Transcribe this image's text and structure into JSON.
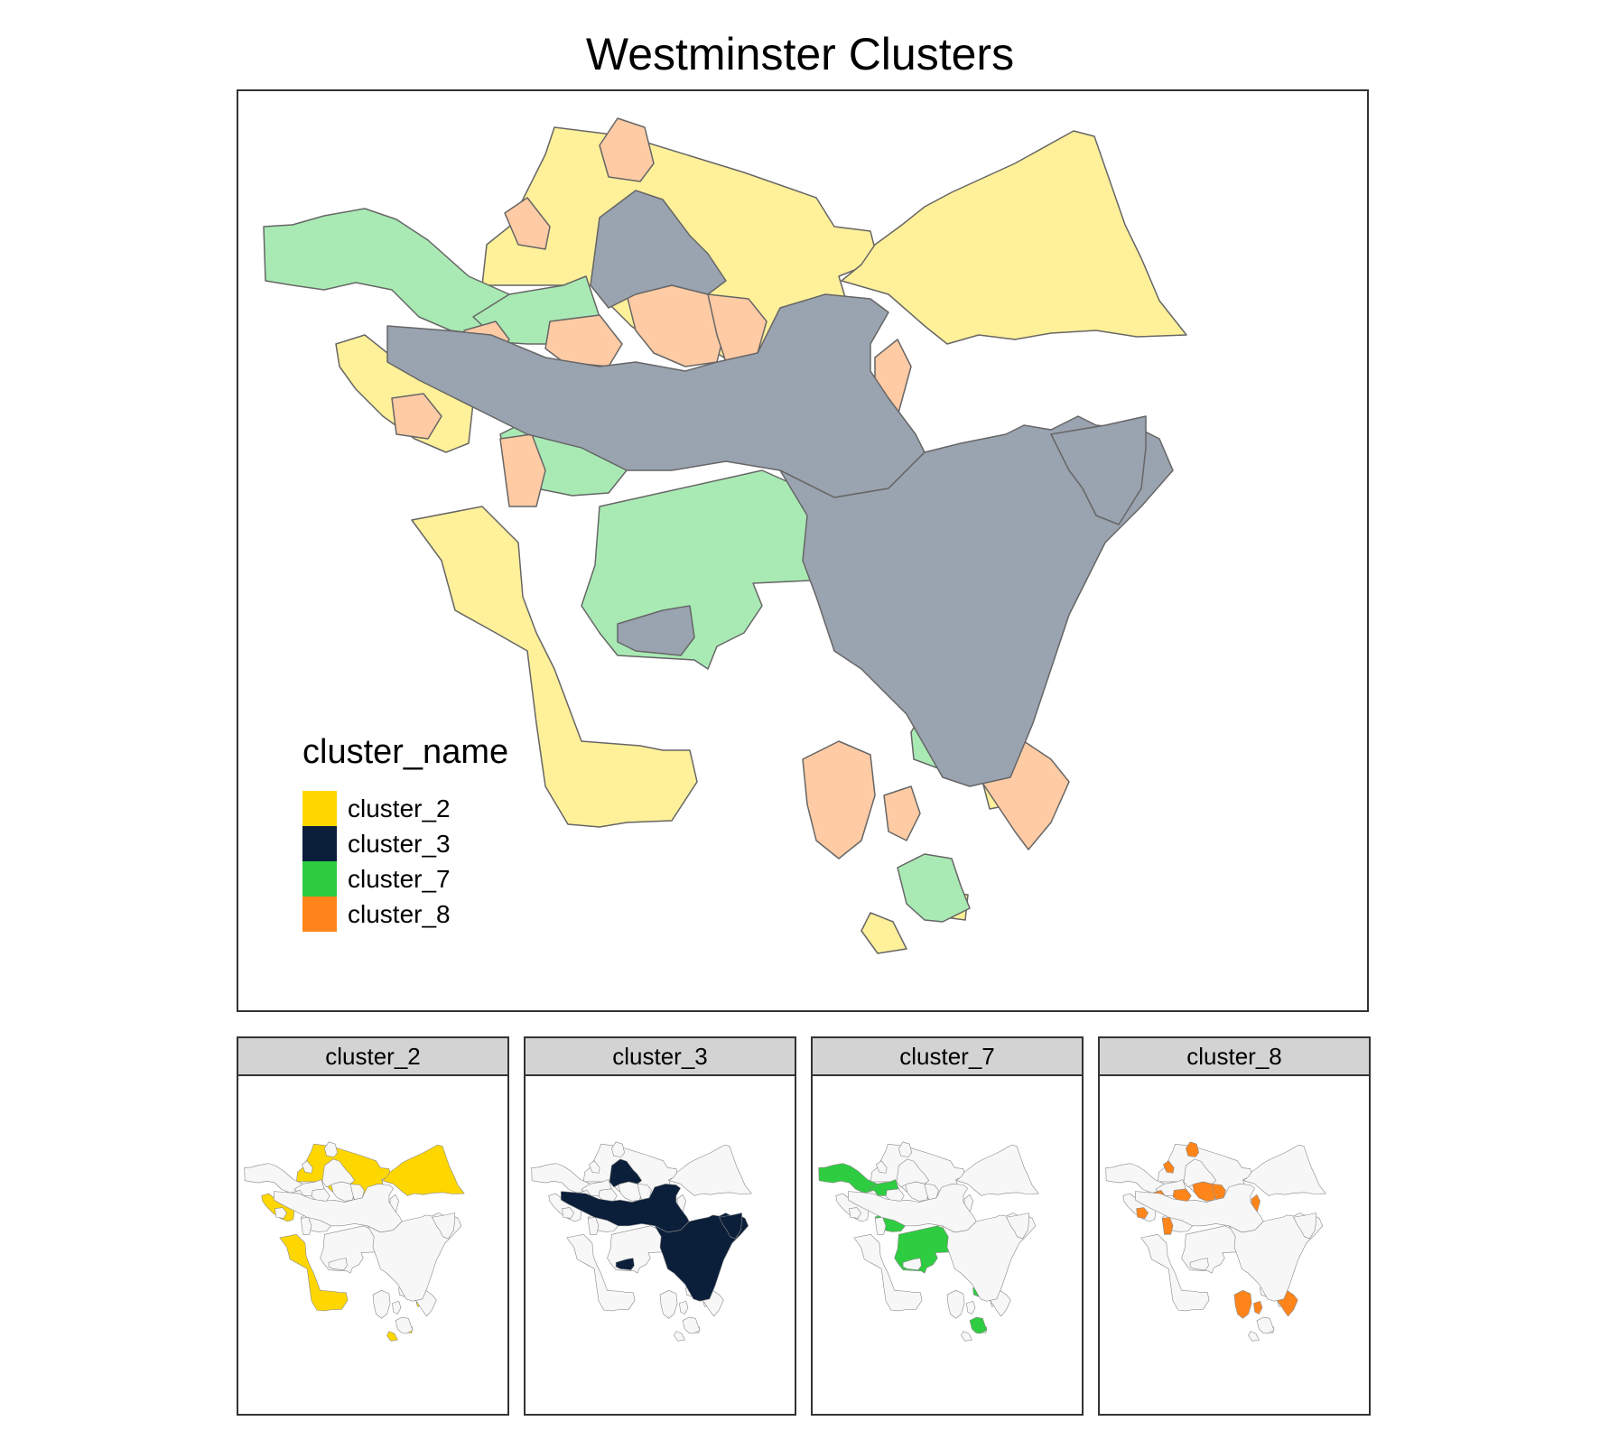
{
  "title": "Westminster Clusters",
  "legend": {
    "title": "cluster_name",
    "items": [
      {
        "label": "cluster_2",
        "color": "#FFD700"
      },
      {
        "label": "cluster_3",
        "color": "#0B1F3A"
      },
      {
        "label": "cluster_7",
        "color": "#2ECC40"
      },
      {
        "label": "cluster_8",
        "color": "#FF851B"
      }
    ]
  },
  "main_map": {
    "fill_opacity": 0.4,
    "region_colors": {
      "cluster_2": "#FFF09A",
      "cluster_3": "#9AA3B0",
      "cluster_7": "#A9EAB4",
      "cluster_8": "#FFCBA4"
    },
    "boundary_color": "#666666"
  },
  "facets": [
    {
      "label": "cluster_2",
      "color": "#FFD700"
    },
    {
      "label": "cluster_3",
      "color": "#0B1F3A"
    },
    {
      "label": "cluster_7",
      "color": "#2ECC40"
    },
    {
      "label": "cluster_8",
      "color": "#FF851B"
    }
  ],
  "facet_background": "#F7F7F7"
}
